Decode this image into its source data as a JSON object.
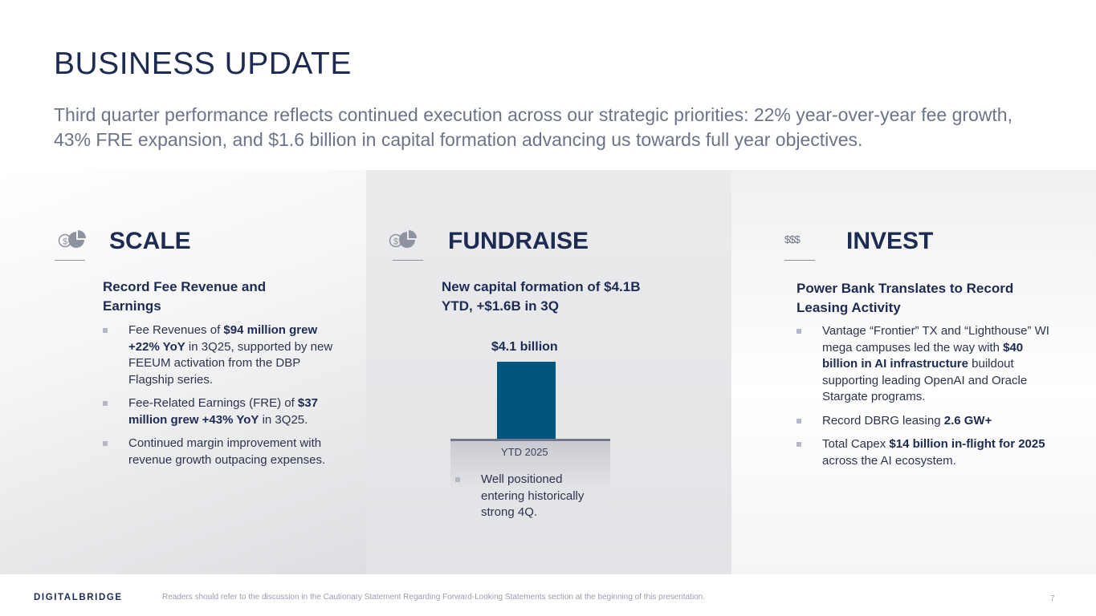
{
  "slide": {
    "title": "BUSINESS UPDATE",
    "subtitle": "Third quarter performance reflects continued execution across our strategic priorities: 22% year-over-year fee growth, 43% FRE expansion, and $1.6 billion in capital formation advancing us towards full year objectives."
  },
  "panels": {
    "scale": {
      "title": "SCALE",
      "icon": "dollar-pie-chart-icon",
      "heading": "Record Fee Revenue and Earnings",
      "bullets": [
        {
          "a": "Fee Revenues of ",
          "b": "$94 million grew +22% YoY",
          "c": " in 3Q25, supported by new FEEUM activation from the DBP Flagship series."
        },
        {
          "a": "Fee-Related Earnings (FRE) of ",
          "b": "$37 million grew +43% YoY",
          "c": " in 3Q25."
        },
        {
          "a": "Continued margin improvement with revenue growth outpacing expenses."
        }
      ]
    },
    "fundraise": {
      "title": "FUNDRAISE",
      "icon": "dollar-pie-chart-icon",
      "heading": "New capital formation of $4.1B YTD, +$1.6B in 3Q",
      "bullets": [
        {
          "a": "Well positioned entering historically strong 4Q."
        }
      ]
    },
    "invest": {
      "title": "INVEST",
      "icon": "triple-dollar-icon",
      "icon_text": "$$$",
      "heading": "Power Bank Translates to Record Leasing Activity",
      "bullets": [
        {
          "a": "Vantage “Frontier” TX and “Lighthouse” WI mega campuses led the way with ",
          "b": "$40 billion in AI infrastructure",
          "c": " buildout supporting leading OpenAI and Oracle Stargate programs."
        },
        {
          "a": "Record DBRG leasing ",
          "b": "2.6 GW+"
        },
        {
          "a": "Total Capex ",
          "b": "$14 billion in-flight for 2025",
          "c": " across the AI ecosystem."
        }
      ]
    }
  },
  "chart_data": {
    "type": "bar",
    "title": "",
    "categories": [
      "YTD 2025"
    ],
    "values": [
      4.1
    ],
    "data_labels": [
      "$4.1 billion"
    ],
    "unit": "$ billion",
    "xlabel": "",
    "ylabel": ""
  },
  "footer": {
    "logo": "DIGITALBRIDGE",
    "disclaimer": "Readers should refer to the discussion in the Cautionary Statement Regarding Forward-Looking Statements section at the beginning of this presentation.",
    "page_number": "7"
  },
  "colors": {
    "navy": "#1d2b52",
    "bar": "#00567c",
    "subtitle_gray": "#6d7388"
  }
}
